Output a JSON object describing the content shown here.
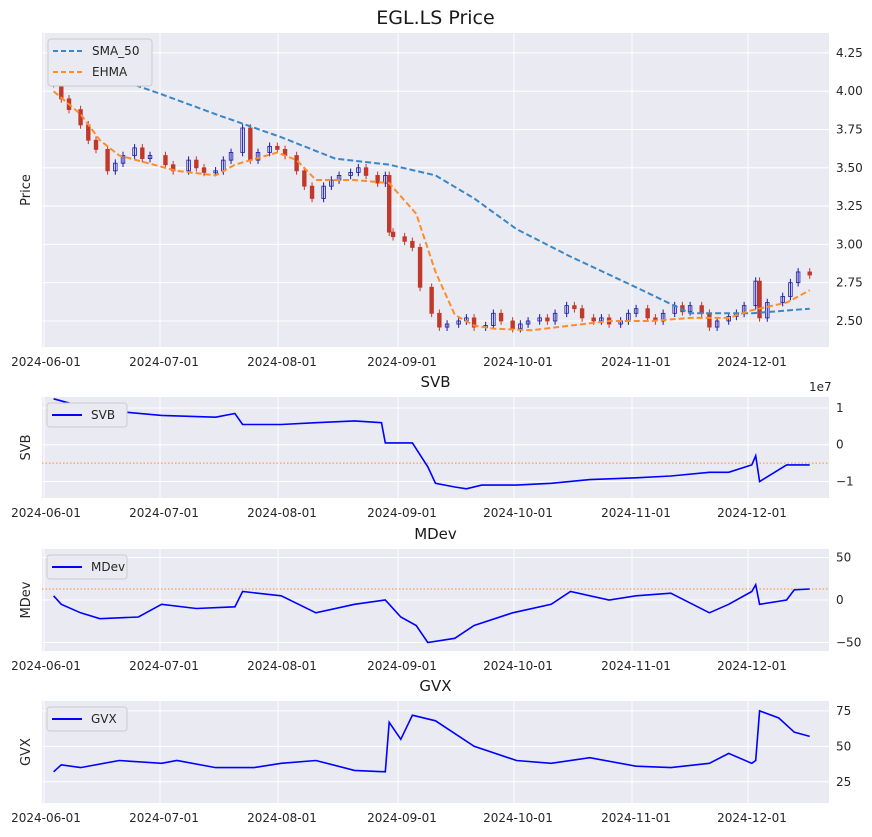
{
  "x_tick_labels": [
    "2024-06-01",
    "2024-07-01",
    "2024-08-01",
    "2024-09-01",
    "2024-10-01",
    "2024-11-01",
    "2024-12-01"
  ],
  "colors": {
    "panel_bg": "#eaeaf2",
    "grid": "#ffffff",
    "up_candle": "#1a1aa6",
    "down_candle": "#c0392b",
    "sma": "#3a87c7",
    "ehma": "#ff8c2a",
    "blue_line": "#0000ff",
    "ref_line": "#ff8c2a"
  },
  "chart_data": [
    {
      "type": "candlestick",
      "title": "EGL.LS Price",
      "ylabel": "Price",
      "ylim": [
        2.33,
        4.38
      ],
      "yticks": [
        "2.50",
        "2.75",
        "3.00",
        "3.25",
        "3.50",
        "3.75",
        "4.00",
        "4.25"
      ],
      "legend": [
        "SMA_50",
        "EHMA"
      ],
      "legend_position": "top-left",
      "x_range": [
        "2024-05-31",
        "2024-12-21"
      ],
      "close_path": [
        [
          "2024-06-03",
          4.05
        ],
        [
          "2024-06-05",
          3.95
        ],
        [
          "2024-06-07",
          3.88
        ],
        [
          "2024-06-10",
          3.78
        ],
        [
          "2024-06-12",
          3.68
        ],
        [
          "2024-06-14",
          3.62
        ],
        [
          "2024-06-17",
          3.48
        ],
        [
          "2024-06-19",
          3.53
        ],
        [
          "2024-06-21",
          3.58
        ],
        [
          "2024-06-24",
          3.63
        ],
        [
          "2024-06-26",
          3.56
        ],
        [
          "2024-06-28",
          3.58
        ],
        [
          "2024-07-02",
          3.52
        ],
        [
          "2024-07-04",
          3.48
        ],
        [
          "2024-07-08",
          3.55
        ],
        [
          "2024-07-10",
          3.5
        ],
        [
          "2024-07-12",
          3.47
        ],
        [
          "2024-07-15",
          3.48
        ],
        [
          "2024-07-17",
          3.55
        ],
        [
          "2024-07-19",
          3.6
        ],
        [
          "2024-07-22",
          3.76
        ],
        [
          "2024-07-24",
          3.55
        ],
        [
          "2024-07-26",
          3.6
        ],
        [
          "2024-07-29",
          3.64
        ],
        [
          "2024-07-31",
          3.62
        ],
        [
          "2024-08-02",
          3.58
        ],
        [
          "2024-08-05",
          3.48
        ],
        [
          "2024-08-07",
          3.38
        ],
        [
          "2024-08-09",
          3.3
        ],
        [
          "2024-08-12",
          3.38
        ],
        [
          "2024-08-14",
          3.42
        ],
        [
          "2024-08-16",
          3.45
        ],
        [
          "2024-08-19",
          3.47
        ],
        [
          "2024-08-21",
          3.5
        ],
        [
          "2024-08-23",
          3.45
        ],
        [
          "2024-08-26",
          3.4
        ],
        [
          "2024-08-28",
          3.45
        ],
        [
          "2024-08-29",
          3.08
        ],
        [
          "2024-08-30",
          3.05
        ],
        [
          "2024-09-02",
          3.02
        ],
        [
          "2024-09-04",
          2.98
        ],
        [
          "2024-09-06",
          2.72
        ],
        [
          "2024-09-09",
          2.55
        ],
        [
          "2024-09-11",
          2.46
        ],
        [
          "2024-09-13",
          2.48
        ],
        [
          "2024-09-16",
          2.5
        ],
        [
          "2024-09-18",
          2.52
        ],
        [
          "2024-09-20",
          2.46
        ],
        [
          "2024-09-23",
          2.47
        ],
        [
          "2024-09-25",
          2.55
        ],
        [
          "2024-09-27",
          2.5
        ],
        [
          "2024-09-30",
          2.45
        ],
        [
          "2024-10-02",
          2.48
        ],
        [
          "2024-10-04",
          2.5
        ],
        [
          "2024-10-07",
          2.52
        ],
        [
          "2024-10-09",
          2.5
        ],
        [
          "2024-10-11",
          2.55
        ],
        [
          "2024-10-14",
          2.6
        ],
        [
          "2024-10-16",
          2.58
        ],
        [
          "2024-10-18",
          2.52
        ],
        [
          "2024-10-21",
          2.5
        ],
        [
          "2024-10-23",
          2.52
        ],
        [
          "2024-10-25",
          2.48
        ],
        [
          "2024-10-28",
          2.5
        ],
        [
          "2024-10-30",
          2.55
        ],
        [
          "2024-11-01",
          2.58
        ],
        [
          "2024-11-04",
          2.52
        ],
        [
          "2024-11-06",
          2.5
        ],
        [
          "2024-11-08",
          2.55
        ],
        [
          "2024-11-11",
          2.6
        ],
        [
          "2024-11-13",
          2.56
        ],
        [
          "2024-11-15",
          2.6
        ],
        [
          "2024-11-18",
          2.55
        ],
        [
          "2024-11-20",
          2.46
        ],
        [
          "2024-11-22",
          2.5
        ],
        [
          "2024-11-25",
          2.53
        ],
        [
          "2024-11-27",
          2.55
        ],
        [
          "2024-11-29",
          2.6
        ],
        [
          "2024-12-02",
          2.76
        ],
        [
          "2024-12-03",
          2.52
        ],
        [
          "2024-12-05",
          2.62
        ],
        [
          "2024-12-09",
          2.66
        ],
        [
          "2024-12-11",
          2.75
        ],
        [
          "2024-12-13",
          2.82
        ],
        [
          "2024-12-16",
          2.8
        ]
      ],
      "sma_50": [
        [
          "2024-06-03",
          4.28
        ],
        [
          "2024-06-15",
          4.12
        ],
        [
          "2024-07-01",
          3.98
        ],
        [
          "2024-07-15",
          3.85
        ],
        [
          "2024-08-01",
          3.7
        ],
        [
          "2024-08-15",
          3.56
        ],
        [
          "2024-08-29",
          3.52
        ],
        [
          "2024-09-10",
          3.45
        ],
        [
          "2024-09-20",
          3.3
        ],
        [
          "2024-10-01",
          3.1
        ],
        [
          "2024-10-15",
          2.92
        ],
        [
          "2024-11-01",
          2.72
        ],
        [
          "2024-11-15",
          2.55
        ],
        [
          "2024-12-01",
          2.55
        ],
        [
          "2024-12-16",
          2.58
        ]
      ],
      "ehma": [
        [
          "2024-06-03",
          4.0
        ],
        [
          "2024-06-10",
          3.85
        ],
        [
          "2024-06-15",
          3.68
        ],
        [
          "2024-06-20",
          3.58
        ],
        [
          "2024-07-05",
          3.48
        ],
        [
          "2024-07-15",
          3.45
        ],
        [
          "2024-07-20",
          3.52
        ],
        [
          "2024-07-31",
          3.6
        ],
        [
          "2024-08-05",
          3.55
        ],
        [
          "2024-08-10",
          3.42
        ],
        [
          "2024-08-20",
          3.42
        ],
        [
          "2024-08-29",
          3.4
        ],
        [
          "2024-09-05",
          3.2
        ],
        [
          "2024-09-10",
          2.82
        ],
        [
          "2024-09-15",
          2.54
        ],
        [
          "2024-09-20",
          2.47
        ],
        [
          "2024-09-25",
          2.45
        ],
        [
          "2024-10-05",
          2.44
        ],
        [
          "2024-10-15",
          2.47
        ],
        [
          "2024-10-25",
          2.5
        ],
        [
          "2024-11-05",
          2.5
        ],
        [
          "2024-11-15",
          2.52
        ],
        [
          "2024-11-25",
          2.52
        ],
        [
          "2024-12-01",
          2.57
        ],
        [
          "2024-12-10",
          2.62
        ],
        [
          "2024-12-16",
          2.7
        ]
      ]
    },
    {
      "type": "line",
      "title": "SVB",
      "ylabel": "SVB",
      "offset_label": "1e7",
      "ylim": [
        -1.45,
        1.3
      ],
      "yticks": [
        "1",
        "0",
        "−1"
      ],
      "ytick_values": [
        1,
        0,
        -1
      ],
      "reference_line": -0.5,
      "legend": [
        "SVB"
      ],
      "legend_position": "top-left",
      "x_range": [
        "2024-05-31",
        "2024-12-21"
      ],
      "series": [
        [
          "2024-06-03",
          1.25
        ],
        [
          "2024-06-10",
          1.05
        ],
        [
          "2024-06-15",
          0.95
        ],
        [
          "2024-07-01",
          0.8
        ],
        [
          "2024-07-15",
          0.75
        ],
        [
          "2024-07-20",
          0.85
        ],
        [
          "2024-07-22",
          0.55
        ],
        [
          "2024-08-01",
          0.55
        ],
        [
          "2024-08-10",
          0.6
        ],
        [
          "2024-08-20",
          0.65
        ],
        [
          "2024-08-27",
          0.6
        ],
        [
          "2024-08-28",
          0.05
        ],
        [
          "2024-09-04",
          0.05
        ],
        [
          "2024-09-08",
          -0.6
        ],
        [
          "2024-09-10",
          -1.05
        ],
        [
          "2024-09-15",
          -1.15
        ],
        [
          "2024-09-18",
          -1.2
        ],
        [
          "2024-09-22",
          -1.1
        ],
        [
          "2024-10-01",
          -1.1
        ],
        [
          "2024-10-10",
          -1.05
        ],
        [
          "2024-10-20",
          -0.95
        ],
        [
          "2024-11-01",
          -0.9
        ],
        [
          "2024-11-10",
          -0.85
        ],
        [
          "2024-11-20",
          -0.75
        ],
        [
          "2024-11-25",
          -0.75
        ],
        [
          "2024-12-01",
          -0.55
        ],
        [
          "2024-12-02",
          -0.3
        ],
        [
          "2024-12-03",
          -1.0
        ],
        [
          "2024-12-10",
          -0.55
        ],
        [
          "2024-12-16",
          -0.55
        ]
      ]
    },
    {
      "type": "line",
      "title": "MDev",
      "ylabel": "MDev",
      "ylim": [
        -60,
        60
      ],
      "yticks": [
        "50",
        "0",
        "−50"
      ],
      "ytick_values": [
        50,
        0,
        -50
      ],
      "reference_line": 13,
      "legend": [
        "MDev"
      ],
      "legend_position": "top-left",
      "x_range": [
        "2024-05-31",
        "2024-12-21"
      ],
      "series": [
        [
          "2024-06-03",
          5
        ],
        [
          "2024-06-05",
          -5
        ],
        [
          "2024-06-10",
          -15
        ],
        [
          "2024-06-15",
          -22
        ],
        [
          "2024-06-25",
          -20
        ],
        [
          "2024-07-01",
          -5
        ],
        [
          "2024-07-10",
          -10
        ],
        [
          "2024-07-20",
          -8
        ],
        [
          "2024-07-22",
          10
        ],
        [
          "2024-08-01",
          5
        ],
        [
          "2024-08-10",
          -15
        ],
        [
          "2024-08-20",
          -5
        ],
        [
          "2024-08-28",
          0
        ],
        [
          "2024-09-01",
          -20
        ],
        [
          "2024-09-05",
          -30
        ],
        [
          "2024-09-08",
          -50
        ],
        [
          "2024-09-15",
          -45
        ],
        [
          "2024-09-20",
          -30
        ],
        [
          "2024-09-30",
          -15
        ],
        [
          "2024-10-10",
          -5
        ],
        [
          "2024-10-15",
          10
        ],
        [
          "2024-10-25",
          0
        ],
        [
          "2024-11-01",
          5
        ],
        [
          "2024-11-10",
          8
        ],
        [
          "2024-11-20",
          -15
        ],
        [
          "2024-11-25",
          -5
        ],
        [
          "2024-12-01",
          10
        ],
        [
          "2024-12-02",
          18
        ],
        [
          "2024-12-03",
          -5
        ],
        [
          "2024-12-10",
          0
        ],
        [
          "2024-12-12",
          12
        ],
        [
          "2024-12-16",
          13
        ]
      ]
    },
    {
      "type": "line",
      "title": "GVX",
      "ylabel": "GVX",
      "ylim": [
        10,
        82
      ],
      "yticks": [
        "25",
        "50",
        "75"
      ],
      "ytick_values": [
        25,
        50,
        75
      ],
      "legend": [
        "GVX"
      ],
      "legend_position": "top-left",
      "x_range": [
        "2024-05-31",
        "2024-12-21"
      ],
      "series": [
        [
          "2024-06-03",
          32
        ],
        [
          "2024-06-05",
          37
        ],
        [
          "2024-06-10",
          35
        ],
        [
          "2024-06-20",
          40
        ],
        [
          "2024-07-01",
          38
        ],
        [
          "2024-07-05",
          40
        ],
        [
          "2024-07-15",
          35
        ],
        [
          "2024-07-25",
          35
        ],
        [
          "2024-08-01",
          38
        ],
        [
          "2024-08-10",
          40
        ],
        [
          "2024-08-20",
          33
        ],
        [
          "2024-08-28",
          32
        ],
        [
          "2024-08-29",
          67
        ],
        [
          "2024-09-01",
          55
        ],
        [
          "2024-09-04",
          72
        ],
        [
          "2024-09-10",
          68
        ],
        [
          "2024-09-20",
          50
        ],
        [
          "2024-10-01",
          40
        ],
        [
          "2024-10-10",
          38
        ],
        [
          "2024-10-20",
          42
        ],
        [
          "2024-11-01",
          36
        ],
        [
          "2024-11-10",
          35
        ],
        [
          "2024-11-20",
          38
        ],
        [
          "2024-11-25",
          45
        ],
        [
          "2024-12-01",
          38
        ],
        [
          "2024-12-02",
          40
        ],
        [
          "2024-12-03",
          75
        ],
        [
          "2024-12-08",
          70
        ],
        [
          "2024-12-12",
          60
        ],
        [
          "2024-12-16",
          57
        ]
      ]
    }
  ]
}
